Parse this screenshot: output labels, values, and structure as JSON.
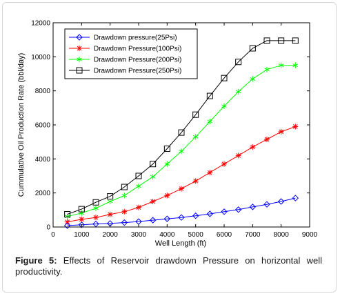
{
  "chart_data": {
    "type": "line",
    "title": "",
    "xlabel": "Well Length (ft)",
    "ylabel": "Cummulative Oil Production Rate (bbl/day)",
    "xlim": [
      0,
      9000
    ],
    "ylim": [
      0,
      12000
    ],
    "x_ticks": [
      0,
      1000,
      2000,
      3000,
      4000,
      5000,
      6000,
      7000,
      8000,
      9000
    ],
    "y_ticks": [
      0,
      2000,
      4000,
      6000,
      8000,
      10000,
      12000
    ],
    "grid": false,
    "legend_position": "top-left",
    "x": [
      500,
      1000,
      1500,
      2000,
      2500,
      3000,
      3500,
      4000,
      4500,
      5000,
      5500,
      6000,
      6500,
      7000,
      7500,
      8000,
      8500
    ],
    "series": [
      {
        "name": "Drawdown pressure(25Psi)",
        "marker": "diamond",
        "color": "#0000ff",
        "values": [
          80,
          130,
          180,
          210,
          260,
          320,
          400,
          480,
          560,
          660,
          770,
          900,
          1020,
          1180,
          1330,
          1500,
          1700
        ]
      },
      {
        "name": "Drawdown Pressure(100Psi)",
        "marker": "star",
        "color": "#ff0000",
        "values": [
          300,
          450,
          560,
          740,
          900,
          1150,
          1500,
          1850,
          2250,
          2700,
          3200,
          3700,
          4200,
          4700,
          5150,
          5600,
          5900
        ]
      },
      {
        "name": "Drawdown Pressure(200Psi)",
        "marker": "asterisk",
        "color": "#00ff00",
        "values": [
          620,
          820,
          1100,
          1500,
          1850,
          2400,
          2950,
          3700,
          4450,
          5300,
          6200,
          7100,
          7950,
          8700,
          9250,
          9500,
          9500
        ]
      },
      {
        "name": "Drawdown Pressure(250Psi)",
        "marker": "square",
        "color": "#000000",
        "values": [
          750,
          1050,
          1450,
          1800,
          2350,
          3000,
          3700,
          4600,
          5550,
          6600,
          7700,
          8750,
          9700,
          10500,
          10950,
          10950,
          10950
        ]
      }
    ]
  },
  "caption": {
    "label": "Figure 5:",
    "text": " Effects of Reservoir drawdown Pressure on horizontal well productivity."
  }
}
